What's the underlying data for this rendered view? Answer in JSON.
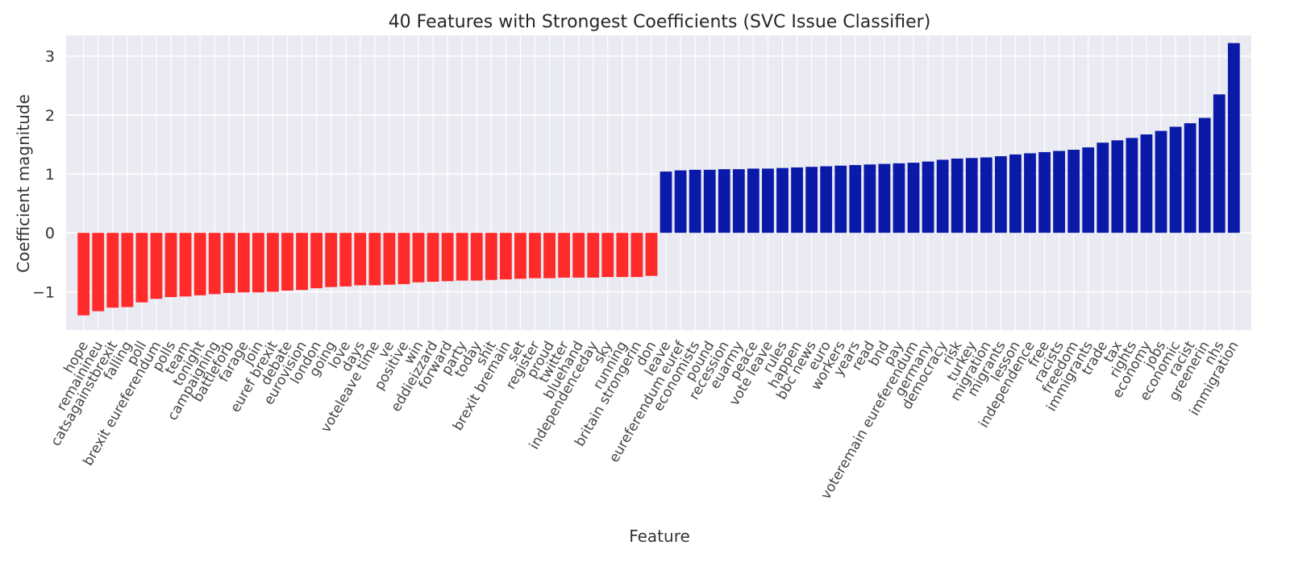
{
  "chart_data": {
    "type": "bar",
    "title": "40 Features with Strongest Coefficients (SVC Issue Classifier)",
    "xlabel": "Feature",
    "ylabel": "Coefficient magnitude",
    "ylim": [
      -1.65,
      3.35
    ],
    "yticks": [
      -1,
      0,
      1,
      2,
      3
    ],
    "grid": true,
    "colors": {
      "negative": "#ff2a2a",
      "positive": "#0a1aa8",
      "background": "#eaeaf2",
      "grid": "#ffffff"
    },
    "categories": [
      "hope",
      "remainineu",
      "catsagainstbrexit",
      "falling",
      "poll",
      "brexit eureferendum",
      "polls",
      "team",
      "tonight",
      "campaigning",
      "battleforb",
      "farage",
      "join",
      "euref brexit",
      "debate",
      "eurovision",
      "london",
      "going",
      "love",
      "days",
      "voteleave time",
      "ve",
      "positive",
      "win",
      "eddieizzard",
      "forward",
      "party",
      "today",
      "shit",
      "brexit bremain",
      "set",
      "register",
      "proud",
      "twitter",
      "bluehand",
      "independenceday",
      "sky",
      "running",
      "britain strongerin",
      "don",
      "leave",
      "eureferendum euref",
      "economists",
      "pound",
      "recession",
      "euarmy",
      "peace",
      "vote leave",
      "rules",
      "happen",
      "bbc news",
      "euro",
      "workers",
      "years",
      "read",
      "bnd",
      "pay",
      "voteremain eureferendum",
      "germany",
      "democracy",
      "risk",
      "turkey",
      "migration",
      "migrants",
      "lesson",
      "independence",
      "free",
      "racists",
      "freedom",
      "immigrants",
      "trade",
      "tax",
      "rights",
      "economy",
      "jobs",
      "economic",
      "racist",
      "greenerin",
      "nhs",
      "immigration"
    ],
    "values": [
      -1.4,
      -1.33,
      -1.27,
      -1.26,
      -1.18,
      -1.12,
      -1.09,
      -1.08,
      -1.06,
      -1.04,
      -1.02,
      -1.01,
      -1.01,
      -1.0,
      -0.98,
      -0.97,
      -0.94,
      -0.92,
      -0.91,
      -0.89,
      -0.89,
      -0.88,
      -0.87,
      -0.84,
      -0.83,
      -0.82,
      -0.81,
      -0.81,
      -0.8,
      -0.79,
      -0.78,
      -0.77,
      -0.77,
      -0.76,
      -0.76,
      -0.76,
      -0.75,
      -0.75,
      -0.75,
      -0.73,
      1.04,
      1.06,
      1.07,
      1.07,
      1.08,
      1.08,
      1.09,
      1.09,
      1.1,
      1.11,
      1.12,
      1.13,
      1.14,
      1.15,
      1.16,
      1.17,
      1.18,
      1.19,
      1.21,
      1.24,
      1.26,
      1.27,
      1.28,
      1.3,
      1.33,
      1.35,
      1.37,
      1.39,
      1.41,
      1.45,
      1.53,
      1.57,
      1.61,
      1.67,
      1.73,
      1.8,
      1.86,
      1.95,
      2.35,
      3.22
    ]
  }
}
